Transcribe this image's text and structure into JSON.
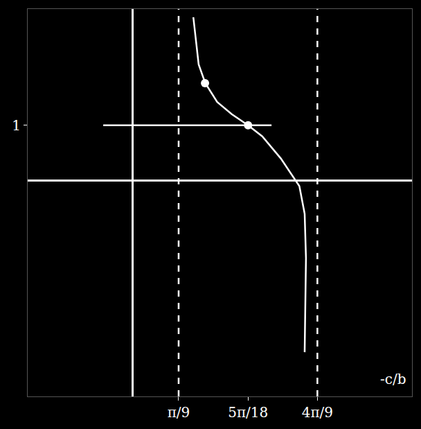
{
  "chart_data": {
    "type": "line",
    "series": [
      {
        "type": "line",
        "line_style": "solid",
        "color": "#ffffff",
        "x": [
          0.46,
          0.5,
          0.55,
          0.64,
          0.75,
          0.873,
          0.98,
          1.12,
          1.26,
          1.3,
          1.31,
          1.3
        ],
        "values": [
          2.95,
          2.1,
          1.76,
          1.42,
          1.2,
          1.0,
          0.8,
          0.4,
          -0.1,
          -0.6,
          -1.4,
          -3.1
        ]
      },
      {
        "type": "line",
        "line_style": "solid",
        "color": "#ffffff",
        "x": [
          -0.22,
          1.05
        ],
        "values": [
          1,
          1
        ]
      },
      {
        "type": "line",
        "line_style": "dashed",
        "color": "#ffffff",
        "x": [
          0.349,
          0.349
        ],
        "values": [
          -3.9,
          3.1
        ]
      },
      {
        "type": "line",
        "line_style": "dashed",
        "color": "#ffffff",
        "x": [
          1.396,
          1.396
        ],
        "values": [
          -3.9,
          3.1
        ]
      },
      {
        "type": "scatter",
        "marker": "circle",
        "color": "#ffffff",
        "x": [
          0.548,
          0.873
        ],
        "values": [
          1.76,
          1.0
        ]
      }
    ],
    "xlim": [
      -0.79,
      2.11
    ],
    "ylim": [
      -3.9,
      3.1
    ],
    "xticks": [
      {
        "value": 0.349,
        "label": "π/9"
      },
      {
        "value": 0.873,
        "label": "5π/18"
      },
      {
        "value": 1.396,
        "label": "4π/9"
      }
    ],
    "yticks": [
      1
    ],
    "annotations": [
      "-c/b"
    ],
    "grid": false
  }
}
